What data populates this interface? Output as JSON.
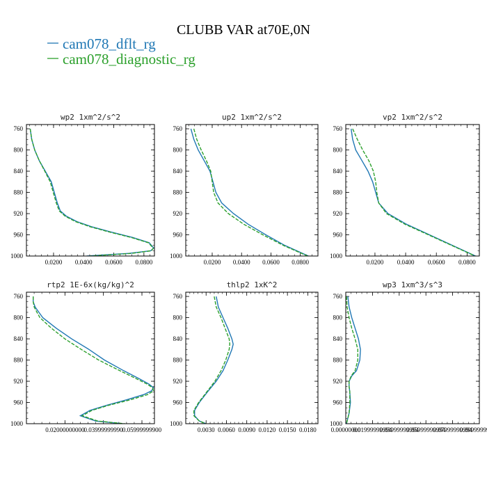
{
  "title": "CLUBB VAR at70E,0N",
  "legend": [
    {
      "label": "cam078_dflt_rg",
      "color": "#1f77b4",
      "style": "solid"
    },
    {
      "label": "cam078_diagnostic_rg",
      "color": "#2ca02c",
      "style": "dashed"
    }
  ],
  "chart_data": [
    {
      "type": "line",
      "title": "wp2  1xm^2/s^2",
      "y_ticks": [
        "760",
        "800",
        "840",
        "880",
        "920",
        "960",
        "1000"
      ],
      "x_ticks": [
        "0.0200",
        "0.0400",
        "0.0600",
        "0.0800"
      ],
      "xlim": [
        0.002,
        0.087
      ],
      "ylim": [
        1000,
        752
      ],
      "y": [
        760,
        780,
        800,
        820,
        840,
        860,
        880,
        900,
        915,
        925,
        935,
        945,
        955,
        965,
        975,
        985,
        990,
        995,
        1000
      ],
      "series": [
        {
          "name": "cam078_dflt_rg",
          "values": [
            0.0045,
            0.0055,
            0.0075,
            0.0105,
            0.0145,
            0.0185,
            0.0205,
            0.0225,
            0.0245,
            0.0285,
            0.0355,
            0.0455,
            0.0585,
            0.0725,
            0.0835,
            0.0865,
            0.0845,
            0.07,
            0.042
          ]
        },
        {
          "name": "cam078_diagnostic_rg",
          "values": [
            0.0045,
            0.0055,
            0.0075,
            0.0105,
            0.0142,
            0.0178,
            0.0198,
            0.0218,
            0.0238,
            0.0278,
            0.0345,
            0.0445,
            0.0575,
            0.0715,
            0.083,
            0.0862,
            0.085,
            0.072,
            0.044
          ]
        }
      ]
    },
    {
      "type": "line",
      "title": "up2  1xm^2/s^2",
      "y_ticks": [
        "760",
        "800",
        "840",
        "880",
        "920",
        "960",
        "1000"
      ],
      "x_ticks": [
        "0.0200",
        "0.0400",
        "0.0600",
        "0.0800"
      ],
      "xlim": [
        0.002,
        0.092
      ],
      "ylim": [
        1000,
        752
      ],
      "y": [
        760,
        780,
        800,
        820,
        840,
        860,
        880,
        900,
        920,
        940,
        960,
        980,
        1000
      ],
      "series": [
        {
          "name": "cam078_dflt_rg",
          "values": [
            0.0055,
            0.0075,
            0.0105,
            0.0145,
            0.0185,
            0.0205,
            0.0225,
            0.0265,
            0.0345,
            0.0445,
            0.0565,
            0.0695,
            0.0855
          ]
        },
        {
          "name": "cam078_diagnostic_rg",
          "values": [
            0.0075,
            0.0095,
            0.0125,
            0.016,
            0.019,
            0.02,
            0.021,
            0.024,
            0.031,
            0.0415,
            0.0545,
            0.0685,
            0.085
          ]
        }
      ]
    },
    {
      "type": "line",
      "title": "vp2  1xm^2/s^2",
      "y_ticks": [
        "760",
        "800",
        "840",
        "880",
        "920",
        "960",
        "1000"
      ],
      "x_ticks": [
        "0.0200",
        "0.0400",
        "0.0600",
        "0.0800"
      ],
      "xlim": [
        0.001,
        0.088
      ],
      "ylim": [
        1000,
        752
      ],
      "y": [
        760,
        780,
        800,
        820,
        840,
        860,
        880,
        900,
        920,
        940,
        960,
        980,
        1000
      ],
      "series": [
        {
          "name": "cam078_dflt_rg",
          "values": [
            0.0045,
            0.0055,
            0.0075,
            0.0115,
            0.0155,
            0.0185,
            0.0205,
            0.0225,
            0.0285,
            0.0405,
            0.0555,
            0.0705,
            0.0855
          ]
        },
        {
          "name": "cam078_diagnostic_rg",
          "values": [
            0.0055,
            0.0085,
            0.012,
            0.016,
            0.019,
            0.0205,
            0.0212,
            0.0225,
            0.0275,
            0.0395,
            0.0548,
            0.07,
            0.0852
          ]
        }
      ]
    },
    {
      "type": "line",
      "title": "rtp2  1E-6x(kg/kg)^2",
      "y_ticks": [
        "760",
        "800",
        "840",
        "880",
        "920",
        "960",
        "1000"
      ],
      "x_ticks": [
        "0.02000000000",
        "0.03999999990",
        "0.05999999900"
      ],
      "xlim": [
        0.0,
        0.0665
      ],
      "ylim": [
        1000,
        752
      ],
      "y": [
        760,
        770,
        780,
        790,
        800,
        820,
        840,
        860,
        880,
        900,
        915,
        925,
        932,
        938,
        945,
        955,
        965,
        975,
        985,
        995,
        1000
      ],
      "series": [
        {
          "name": "cam078_dflt_rg",
          "values": [
            0.0035,
            0.0035,
            0.0045,
            0.0065,
            0.0085,
            0.0155,
            0.0235,
            0.0325,
            0.0405,
            0.0505,
            0.0585,
            0.0635,
            0.066,
            0.065,
            0.061,
            0.052,
            0.042,
            0.033,
            0.028,
            0.036,
            0.05
          ]
        },
        {
          "name": "cam078_diagnostic_rg",
          "values": [
            0.0035,
            0.0035,
            0.004,
            0.0055,
            0.007,
            0.013,
            0.02,
            0.0285,
            0.0375,
            0.0485,
            0.057,
            0.0625,
            0.0655,
            0.066,
            0.063,
            0.054,
            0.043,
            0.034,
            0.029,
            0.037,
            0.051
          ]
        }
      ]
    },
    {
      "type": "line",
      "title": "thlp2  1xK^2",
      "y_ticks": [
        "760",
        "800",
        "840",
        "880",
        "920",
        "960",
        "1000"
      ],
      "x_ticks": [
        "0.0030",
        "0.0060",
        "0.0090",
        "0.0120",
        "0.0150",
        "0.0180"
      ],
      "xlim": [
        0.0,
        0.0195
      ],
      "ylim": [
        1000,
        752
      ],
      "y": [
        760,
        780,
        800,
        820,
        840,
        850,
        860,
        880,
        900,
        920,
        940,
        960,
        975,
        985,
        995,
        1000
      ],
      "series": [
        {
          "name": "cam078_dflt_rg",
          "values": [
            0.0045,
            0.0048,
            0.0055,
            0.0062,
            0.0068,
            0.007,
            0.0068,
            0.0062,
            0.0055,
            0.0045,
            0.0032,
            0.002,
            0.0013,
            0.0013,
            0.002,
            0.003
          ]
        },
        {
          "name": "cam078_diagnostic_rg",
          "values": [
            0.0042,
            0.0045,
            0.0052,
            0.0058,
            0.0064,
            0.0065,
            0.0064,
            0.0059,
            0.0052,
            0.0043,
            0.0031,
            0.0019,
            0.0012,
            0.0012,
            0.002,
            0.003
          ]
        }
      ]
    },
    {
      "type": "line",
      "title": "wp3  1xm^3/s^3",
      "y_ticks": [
        "760",
        "800",
        "840",
        "880",
        "920",
        "960",
        "1000"
      ],
      "x_ticks": [
        "0.00000000",
        "0.01999999994",
        "0.03999999994",
        "0.05999999994",
        "0.07999999994",
        "0.09999999994"
      ],
      "xlim": [
        0.0,
        0.1
      ],
      "ylim": [
        1000,
        752
      ],
      "y": [
        760,
        780,
        800,
        820,
        840,
        860,
        880,
        900,
        910,
        920,
        930,
        940,
        960,
        980,
        1000
      ],
      "series": [
        {
          "name": "cam078_dflt_rg",
          "values": [
            0.0015,
            0.0025,
            0.0045,
            0.007,
            0.0095,
            0.011,
            0.0105,
            0.008,
            0.0045,
            0.0025,
            0.0025,
            0.003,
            0.0035,
            0.0025,
            0.0005
          ]
        },
        {
          "name": "cam078_diagnostic_rg",
          "values": [
            0.0005,
            0.001,
            0.0025,
            0.0045,
            0.007,
            0.009,
            0.009,
            0.007,
            0.004,
            0.0025,
            0.0025,
            0.003,
            0.003,
            0.0025,
            0.0005
          ]
        }
      ]
    }
  ]
}
